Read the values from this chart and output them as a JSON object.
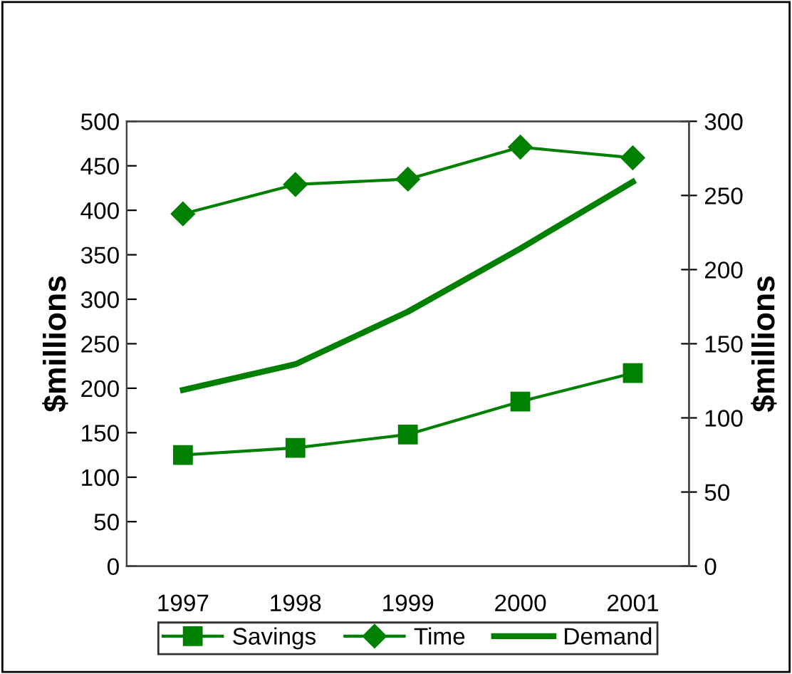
{
  "chart_data": {
    "type": "line",
    "categories": [
      "1997",
      "1998",
      "1999",
      "2000",
      "2001"
    ],
    "series": [
      {
        "name": "Savings",
        "color": "#008000",
        "values": [
          125,
          133,
          148,
          185,
          217
        ],
        "marker": "square"
      },
      {
        "name": "Time",
        "color": "#008000",
        "values": [
          396,
          429,
          435,
          471,
          459
        ],
        "marker": "diamond"
      },
      {
        "name": "Demand",
        "color": "#008000",
        "values": [
          198,
          227,
          286,
          357,
          432
        ],
        "marker": "none"
      }
    ],
    "ylabel": "$millions",
    "y2label": "$millions",
    "ylim": [
      0,
      500
    ],
    "yticks": [
      0,
      50,
      100,
      150,
      200,
      250,
      300,
      350,
      400,
      450,
      500
    ],
    "y2lim": [
      0,
      300
    ],
    "y2ticks": [
      0,
      50,
      100,
      150,
      200,
      250,
      300
    ],
    "grid": false,
    "legend": "bottom",
    "line_style": "solid"
  }
}
